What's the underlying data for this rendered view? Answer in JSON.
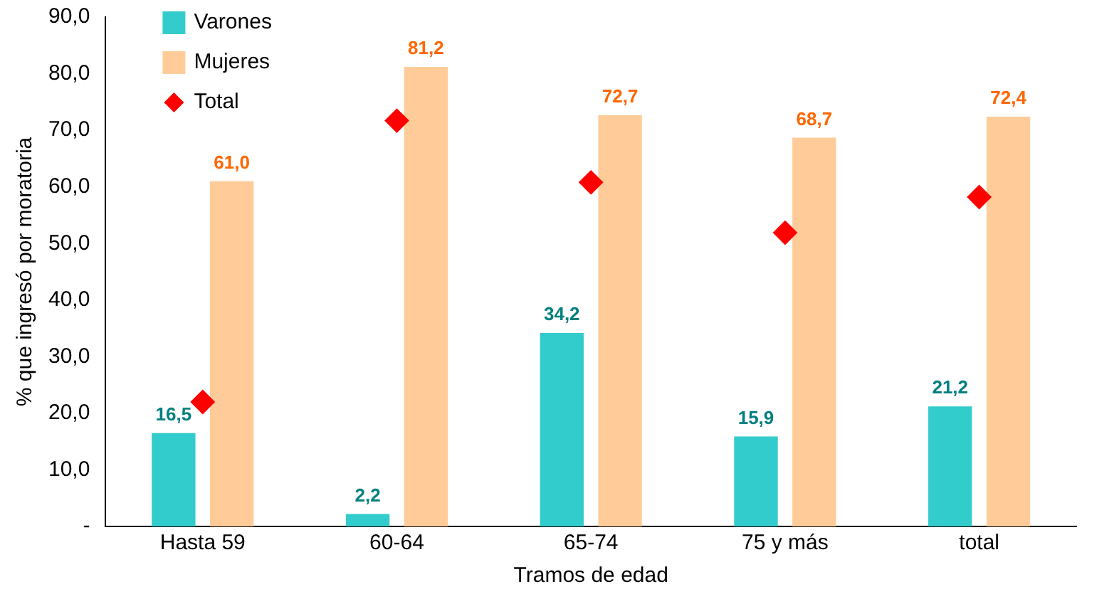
{
  "chart_data": {
    "type": "bar",
    "xlabel": "Tramos de edad",
    "ylabel": "% que ingresó por moratoria",
    "categories": [
      "Hasta 59",
      "60-64",
      "65-74",
      "75 y más",
      "total"
    ],
    "ylim": [
      0,
      90
    ],
    "yticks": [
      {
        "value": 0,
        "label": "-"
      },
      {
        "value": 10,
        "label": "10,0"
      },
      {
        "value": 20,
        "label": "20,0"
      },
      {
        "value": 30,
        "label": "30,0"
      },
      {
        "value": 40,
        "label": "40,0"
      },
      {
        "value": 50,
        "label": "50,0"
      },
      {
        "value": 60,
        "label": "60,0"
      },
      {
        "value": 70,
        "label": "70,0"
      },
      {
        "value": 80,
        "label": "80,0"
      },
      {
        "value": 90,
        "label": "90,0"
      }
    ],
    "grid": false,
    "legend": "top left",
    "series": [
      {
        "name": "Varones",
        "color": "#33cccc",
        "values": [
          16.5,
          2.2,
          34.2,
          15.9,
          21.2
        ],
        "value_labels": [
          "16,5",
          "2,2",
          "34,2",
          "15,9",
          "21,2"
        ]
      },
      {
        "name": "Mujeres",
        "color": "#ffcc99",
        "values": [
          61.0,
          81.2,
          72.7,
          68.7,
          72.4
        ],
        "value_labels": [
          "61,0",
          "81,2",
          "72,7",
          "68,7",
          "72,4"
        ]
      },
      {
        "name": "Total",
        "type": "scatter",
        "marker": "diamond",
        "color": "#ff0000",
        "x": [
          "Hasta 59",
          "60-64",
          "65-74",
          "75 y más",
          "total"
        ],
        "values": [
          22,
          71.7,
          60.8,
          51.9,
          58.2
        ]
      }
    ]
  }
}
